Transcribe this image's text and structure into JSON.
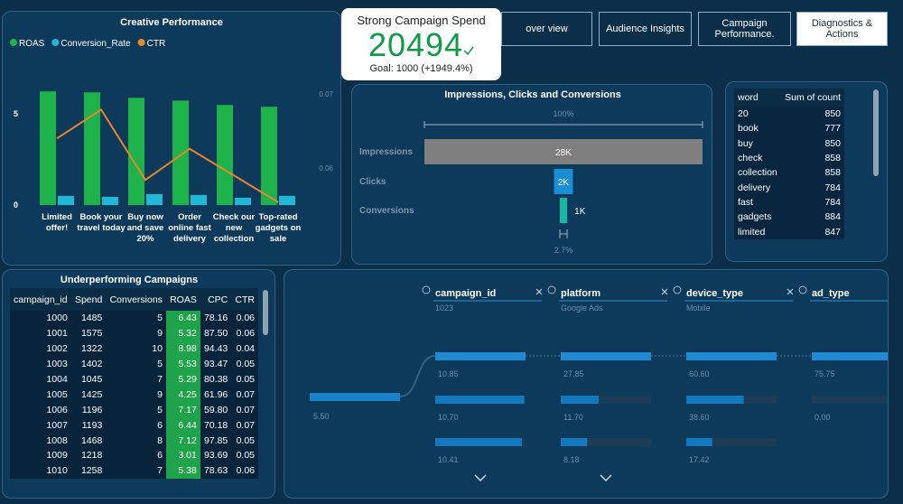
{
  "nav": [
    "over view",
    "Audience Insights",
    "Campaign Performance.",
    "Diagnostics & Actions"
  ],
  "kpi": {
    "title": "Strong Campaign Spend",
    "value": 20494,
    "goal": "Goal: 1000 (+1949.4%)"
  },
  "chart_data": [
    {
      "type": "bar",
      "title": "Creative Performance",
      "categories": [
        "Limited offer!",
        "Book your travel today",
        "Buy now and save 20%",
        "Order online fast delivery",
        "Check our new collection",
        "Top-rated gadgets on sale"
      ],
      "series": [
        {
          "name": "ROAS",
          "color": "#1db34a",
          "values": [
            6.24,
            6.19,
            5.89,
            5.74,
            5.5,
            5.4
          ]
        },
        {
          "name": "Conversion_Rate",
          "color": "#1fb8d6",
          "values": [
            0.5,
            0.45,
            0.6,
            0.55,
            0.4,
            0.5
          ]
        },
        {
          "name": "CTR",
          "type": "line",
          "axis": "y2",
          "color": "#e8862b",
          "values": [
            0.064,
            0.0679,
            0.0584,
            0.0626,
            0.059,
            0.0554
          ]
        }
      ],
      "ylim": [
        0,
        6.5
      ],
      "yticks": [
        0,
        5
      ],
      "y2lim": [
        0.055,
        0.071
      ],
      "y2ticks": [
        0.06,
        0.07
      ],
      "grid": false
    },
    {
      "type": "funnel",
      "title": "Impressions, Clicks and Conversions",
      "categories": [
        "Impressions",
        "Clicks",
        "Conversions"
      ],
      "values": [
        28000,
        1900,
        756
      ],
      "value_labels": [
        "28K",
        "2K",
        "1K"
      ],
      "colors": [
        "#7f7f7f",
        "#1a8fd6",
        "#1bb5a5"
      ],
      "annotations": [
        "100%",
        "2.7%"
      ]
    }
  ],
  "word_table": {
    "header": [
      "word",
      "Sum of count"
    ],
    "rows": [
      [
        "20",
        850
      ],
      [
        "book",
        777
      ],
      [
        "buy",
        850
      ],
      [
        "check",
        858
      ],
      [
        "collection",
        858
      ],
      [
        "delivery",
        784
      ],
      [
        "fast",
        784
      ],
      [
        "gadgets",
        884
      ],
      [
        "limited",
        847
      ]
    ]
  },
  "campaign_table": {
    "title": "Underperforming Campaigns",
    "header": [
      "campaign_id",
      "Spend",
      "Conversions",
      "ROAS",
      "CPC",
      "CTR"
    ],
    "rows": [
      [
        1000,
        1485,
        5,
        6.43,
        78.16,
        0.06
      ],
      [
        1001,
        1575,
        9,
        5.32,
        "87.50",
        0.06
      ],
      [
        1002,
        1322,
        10,
        8.98,
        94.43,
        0.04
      ],
      [
        1003,
        1402,
        5,
        5.53,
        93.47,
        0.05
      ],
      [
        1004,
        1045,
        7,
        5.29,
        80.38,
        0.05
      ],
      [
        1005,
        1425,
        9,
        4.25,
        61.96,
        0.07
      ],
      [
        1006,
        1196,
        5,
        7.17,
        "59.80",
        0.07
      ],
      [
        1007,
        1193,
        6,
        6.44,
        70.18,
        0.07
      ],
      [
        1008,
        1468,
        8,
        7.12,
        97.85,
        0.05
      ],
      [
        1009,
        1218,
        6,
        3.01,
        93.69,
        0.05
      ],
      [
        1010,
        1258,
        7,
        5.38,
        78.63,
        0.06
      ]
    ]
  },
  "decomp_tree": {
    "fields": [
      "campaign_id",
      "platform",
      "device_type",
      "ad_type"
    ],
    "selected": [
      "1023",
      "Google Ads",
      "Mobile"
    ],
    "root": {
      "value": 5.5,
      "label": "5.50"
    },
    "levels": [
      [
        10.85,
        {
          "value": 10.7,
          "label": "10.70"
        },
        10.41
      ],
      [
        27.85,
        {
          "value": 11.7,
          "label": "11.70"
        },
        8.18
      ],
      [
        {
          "value": 60.6,
          "label": "60.60"
        },
        {
          "value": 38.6,
          "label": "38.60"
        },
        17.42
      ],
      [
        75.75,
        {
          "value": 0,
          "label": "0.00"
        }
      ]
    ]
  }
}
